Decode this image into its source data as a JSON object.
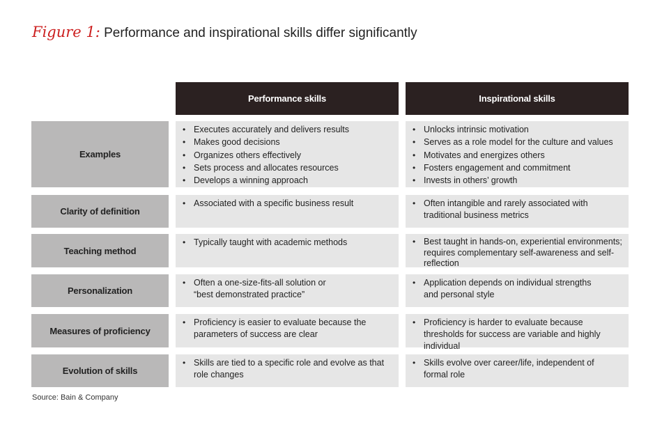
{
  "figure": {
    "label": "Figure 1:",
    "title": "Performance and inspirational skills differ significantly"
  },
  "columns": [
    "Performance skills",
    "Inspirational skills"
  ],
  "rows": [
    {
      "label": "Examples",
      "performance": [
        "Executes accurately and delivers results",
        "Makes good decisions",
        "Organizes others effectively",
        "Sets process and allocates resources",
        "Develops a winning approach"
      ],
      "inspirational": [
        "Unlocks intrinsic motivation",
        "Serves as a role model for the culture and values",
        "Motivates and energizes others",
        "Fosters engagement and commitment",
        "Invests in others’ growth"
      ]
    },
    {
      "label": "Clarity of definition",
      "performance": [
        "Associated with a specific business result"
      ],
      "inspirational": [
        "Often intangible and rarely associated with traditional business metrics"
      ]
    },
    {
      "label": "Teaching method",
      "performance": [
        "Typically taught with academic methods"
      ],
      "inspirational": [
        "Best taught in hands-on, experiential environments; requires complementary self-awareness and self-reflection"
      ]
    },
    {
      "label": "Personalization",
      "performance": [
        "Often a one-size-fits-all solution or “best demonstrated practice”"
      ],
      "inspirational": [
        "Application depends on individual strengths and personal style"
      ]
    },
    {
      "label": "Measures of proficiency",
      "performance": [
        "Proficiency is easier to evaluate because the parameters of success are clear"
      ],
      "inspirational": [
        "Proficiency is harder to evaluate because thresholds for success are variable and highly individual"
      ]
    },
    {
      "label": "Evolution of skills",
      "performance": [
        "Skills are tied to a specific role and evolve as that role changes"
      ],
      "inspirational": [
        "Skills evolve over career/life, independent of formal role"
      ]
    }
  ],
  "source": "Source: Bain & Company",
  "colors": {
    "accent": "#cc1f1f",
    "header_bg": "#2b2121",
    "label_bg": "#b9b8b8",
    "cell_bg": "#e6e6e6"
  }
}
